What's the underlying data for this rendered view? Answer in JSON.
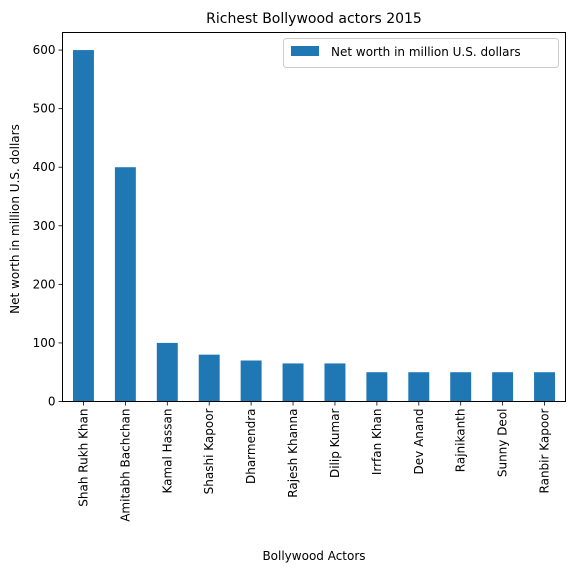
{
  "chart_data": {
    "type": "bar",
    "title": "Richest Bollywood actors 2015",
    "xlabel": "Bollywood Actors",
    "ylabel": "Net worth in million U.S. dollars",
    "categories": [
      "Shah Rukh Khan",
      "Amitabh Bachchan",
      "Kamal Hassan",
      "Shashi Kapoor",
      "Dharmendra",
      "Rajesh Khanna",
      "Dilip Kumar",
      "Irrfan Khan",
      "Dev Anand",
      "Rajnikanth",
      "Sunny Deol",
      "Ranbir Kapoor"
    ],
    "series": [
      {
        "name": "Net worth in million U.S. dollars",
        "values": [
          600,
          400,
          100,
          80,
          70,
          65,
          65,
          50,
          50,
          50,
          50,
          50
        ]
      }
    ],
    "ylim": [
      0,
      630
    ],
    "yticks": [
      0,
      100,
      200,
      300,
      400,
      500,
      600
    ],
    "grid": false,
    "legend": "top-right",
    "colors": {
      "bar": "#1f77b4"
    }
  }
}
